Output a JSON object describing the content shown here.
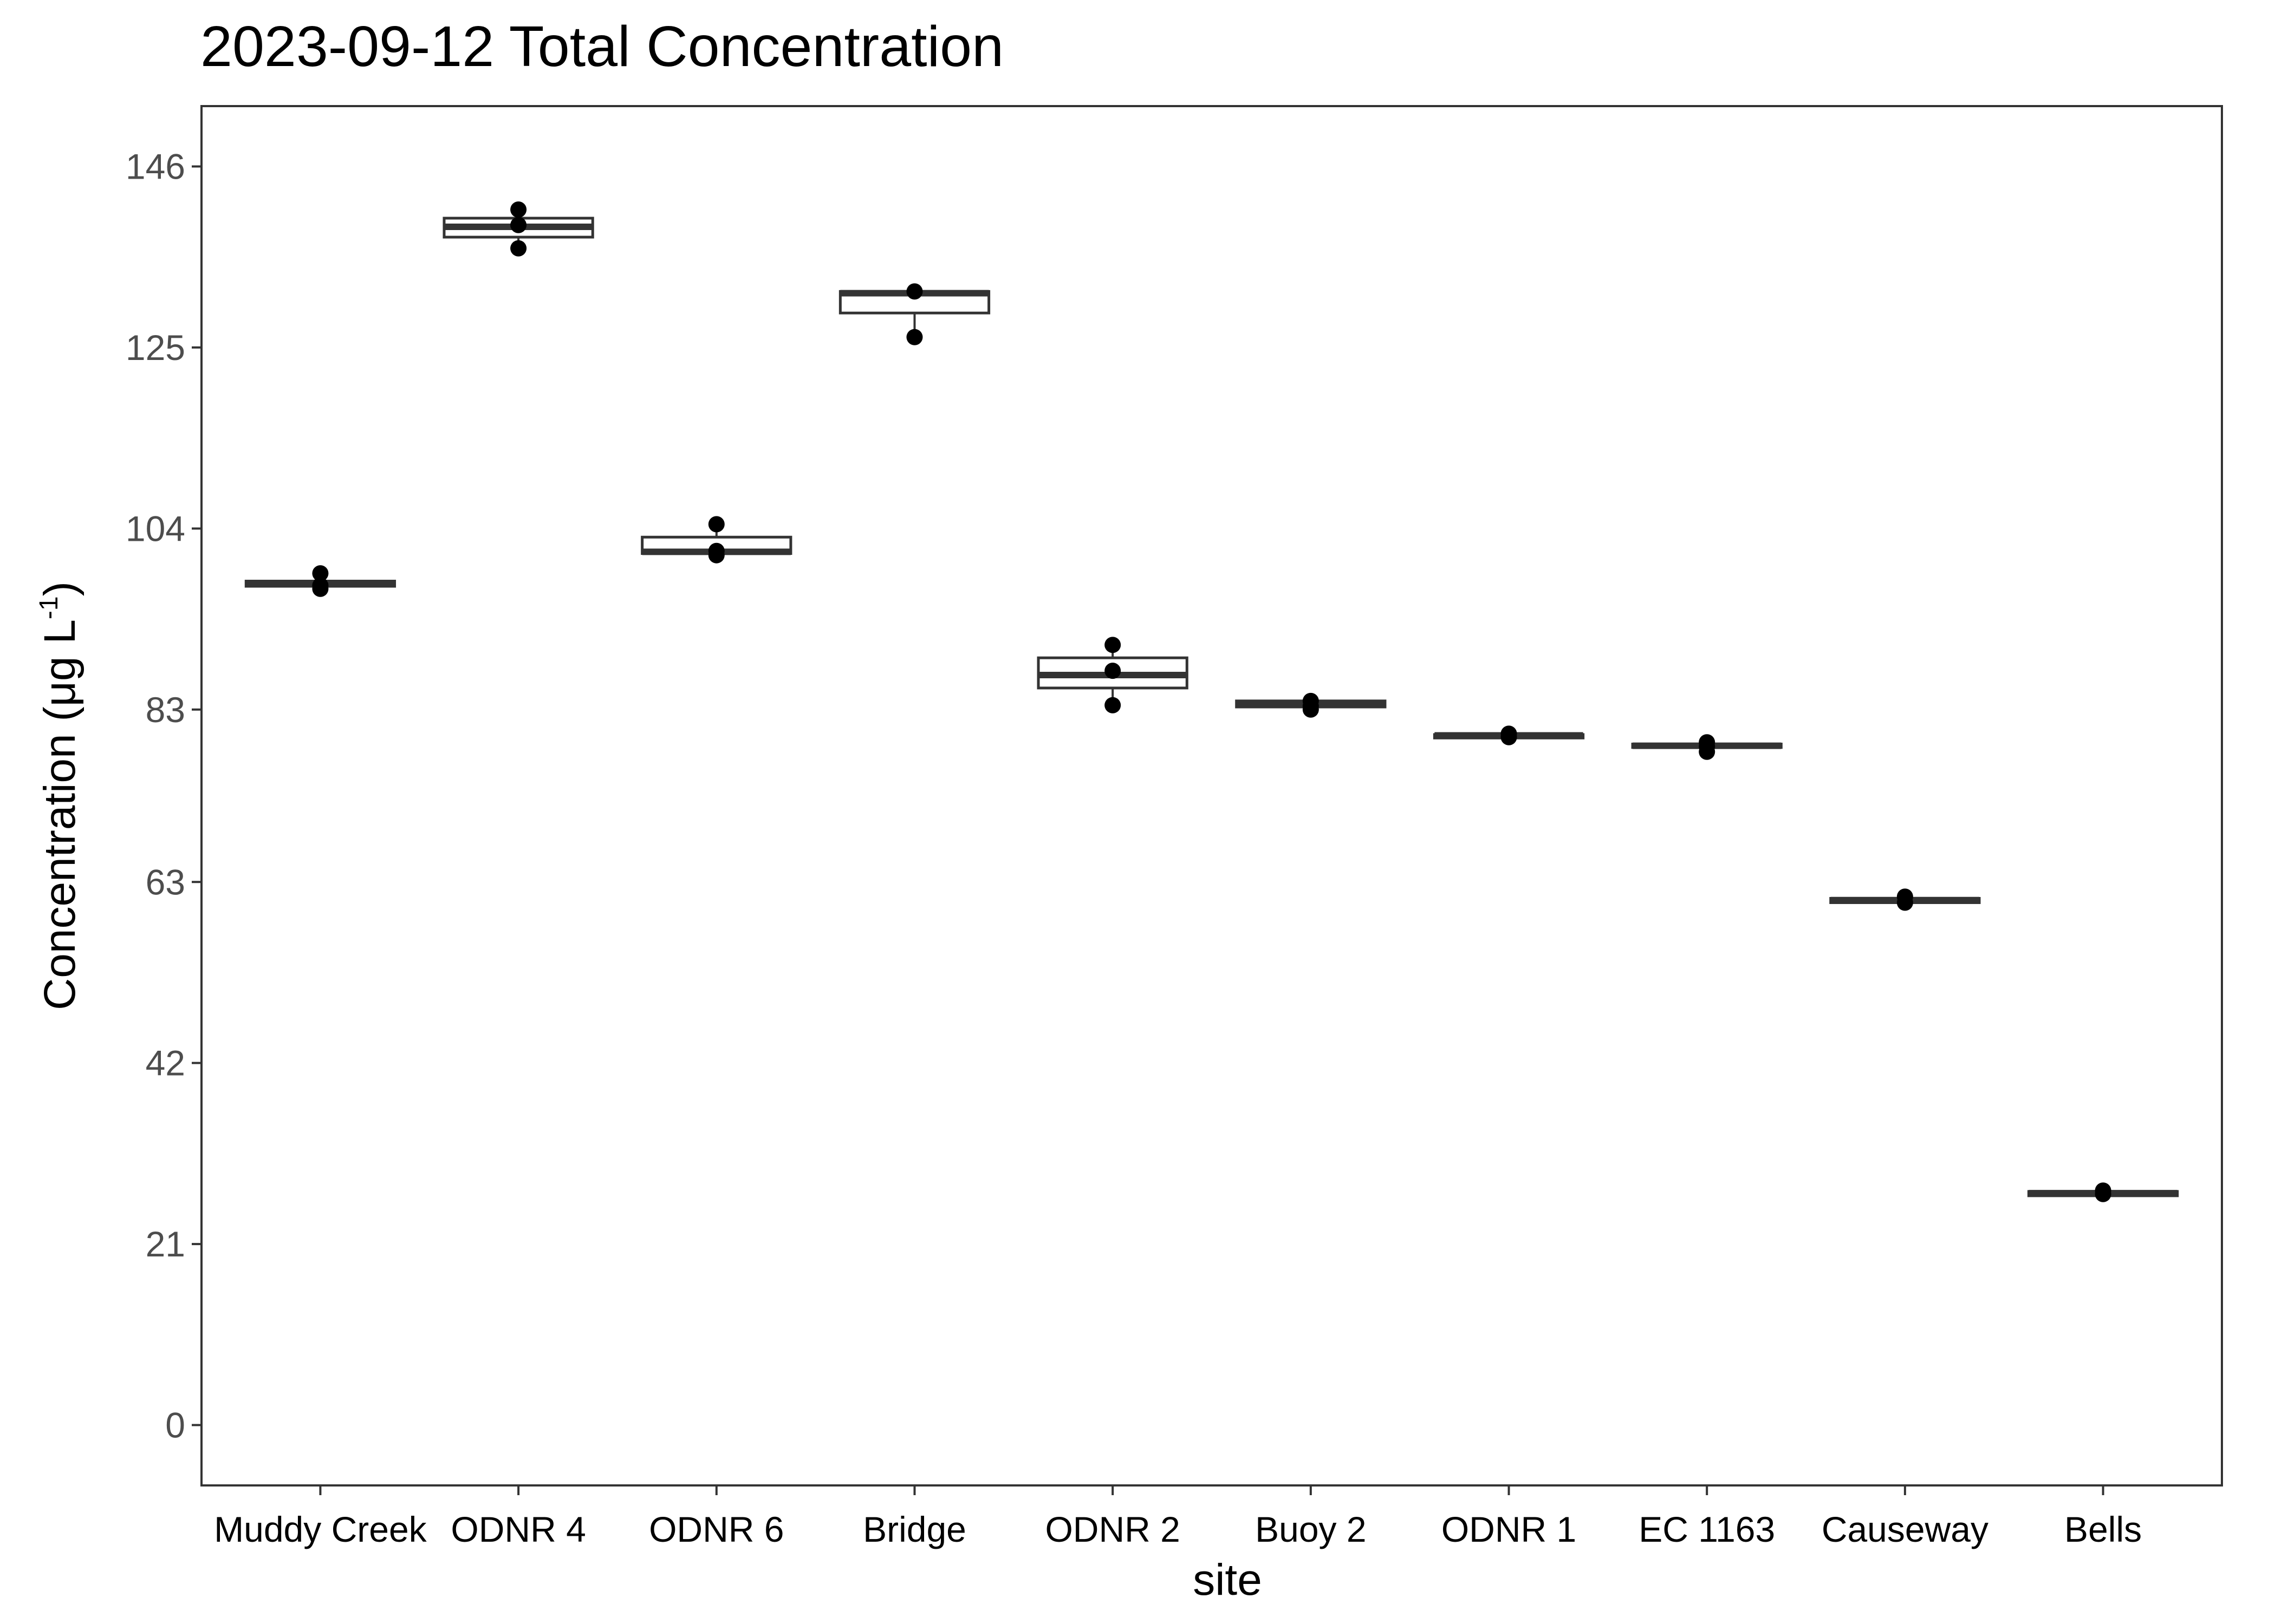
{
  "chart_data": {
    "type": "boxplot",
    "title": "2023-09-12 Total Concentration",
    "xlabel": "site",
    "ylabel": {
      "main": "Concentration (μg L",
      "superscript": "-1",
      "close": ")"
    },
    "yticks": [
      0,
      21,
      42,
      63,
      83,
      104,
      125,
      146
    ],
    "ylim": [
      -7,
      153
    ],
    "grid": false,
    "categories": [
      "Muddy Creek",
      "ODNR 4",
      "ODNR 6",
      "Bridge",
      "ODNR 2",
      "Buoy 2",
      "ODNR 1",
      "EC 1163",
      "Causeway",
      "Bells"
    ],
    "boxes": [
      {
        "site": "Muddy Creek",
        "lower": 97.2,
        "q1": 97.3,
        "median": 97.6,
        "q3": 97.9,
        "upper": 98.8,
        "points": [
          98.8,
          97.4,
          97.0
        ]
      },
      {
        "site": "ODNR 4",
        "lower": 136.5,
        "q1": 137.8,
        "median": 139.0,
        "q3": 140.0,
        "upper": 141.0,
        "points": [
          141.0,
          139.2,
          136.5
        ]
      },
      {
        "site": "ODNR 6",
        "lower": 101.0,
        "q1": 101.1,
        "median": 101.3,
        "q3": 103.0,
        "upper": 104.5,
        "points": [
          104.5,
          101.4,
          100.9
        ]
      },
      {
        "site": "Bridge",
        "lower": 126.5,
        "q1": 129.0,
        "median": 131.3,
        "q3": 131.5,
        "upper": 131.6,
        "points": [
          131.5,
          126.2
        ]
      },
      {
        "site": "ODNR 2",
        "lower": 83.5,
        "q1": 85.5,
        "median": 87.0,
        "q3": 89.0,
        "upper": 91.0,
        "points": [
          90.5,
          87.5,
          83.5
        ]
      },
      {
        "site": "Buoy 2",
        "lower": 83.2,
        "q1": 83.3,
        "median": 83.7,
        "q3": 84.0,
        "upper": 84.2,
        "points": [
          84.0,
          83.4,
          83.0
        ]
      },
      {
        "site": "ODNR 1",
        "lower": 79.6,
        "q1": 79.7,
        "median": 80.0,
        "q3": 80.1,
        "upper": 80.3,
        "points": [
          80.2,
          79.8
        ]
      },
      {
        "site": "EC 1163",
        "lower": 78.5,
        "q1": 78.6,
        "median": 78.8,
        "q3": 79.0,
        "upper": 79.3,
        "points": [
          79.2,
          78.7,
          78.1
        ]
      },
      {
        "site": "Causeway",
        "lower": 60.5,
        "q1": 60.6,
        "median": 60.9,
        "q3": 61.1,
        "upper": 61.4,
        "points": [
          61.3,
          60.6
        ]
      },
      {
        "site": "Bells",
        "lower": 26.5,
        "q1": 26.6,
        "median": 26.9,
        "q3": 27.1,
        "upper": 27.3,
        "points": [
          27.2,
          26.8
        ]
      }
    ]
  }
}
